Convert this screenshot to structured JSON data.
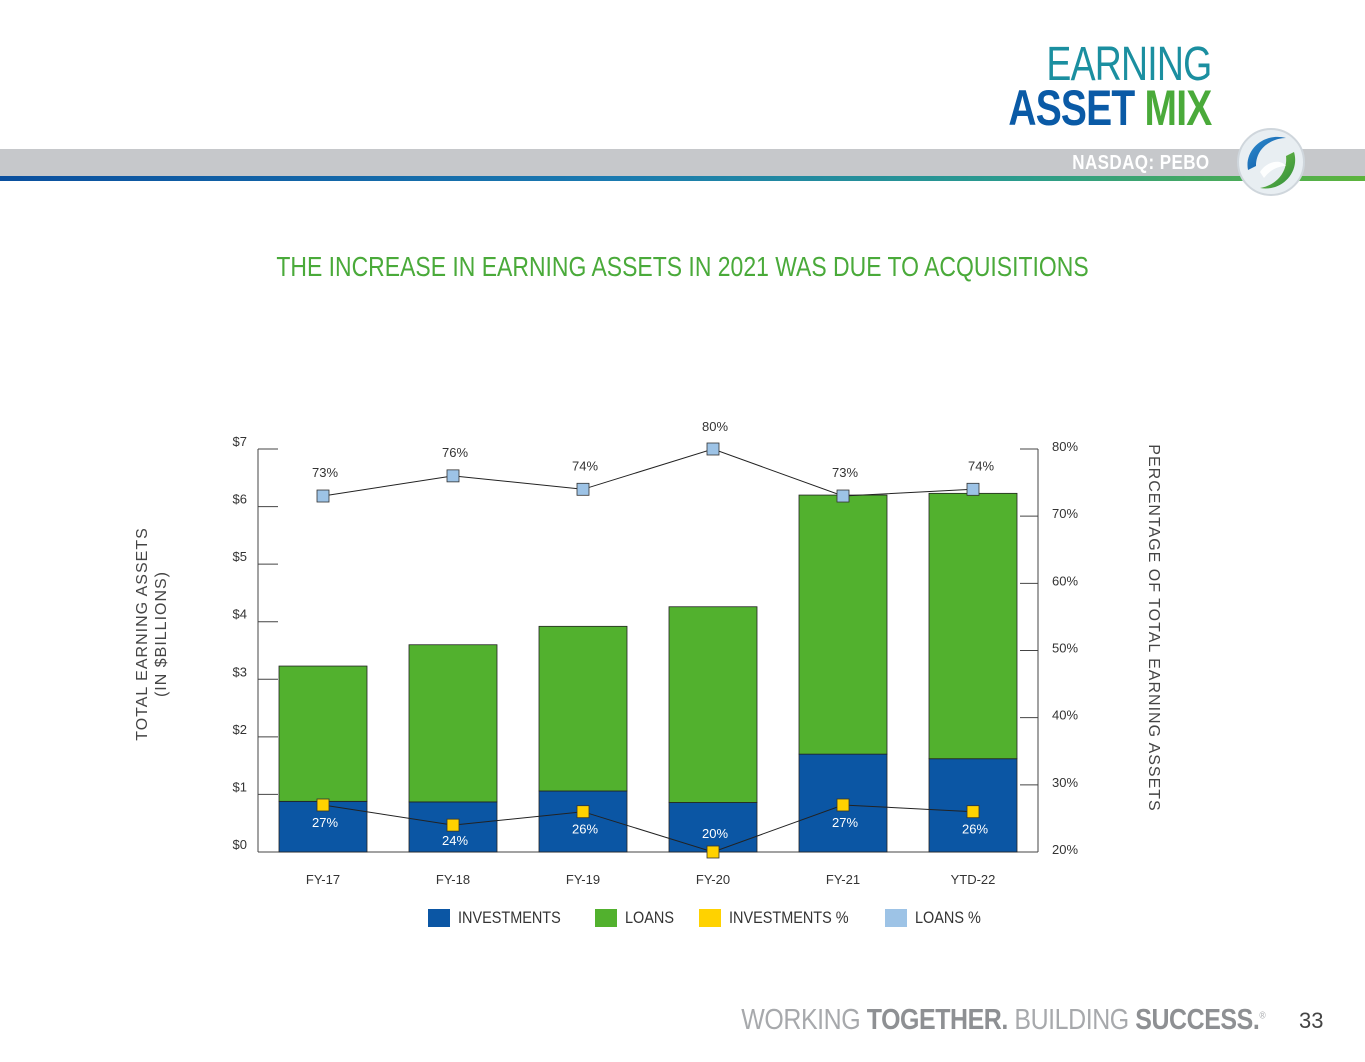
{
  "header": {
    "title_line1": "EARNING",
    "title_asset": "ASSET",
    "title_mix": "MIX",
    "ticker": "NASDAQ: PEBO"
  },
  "subtitle": "THE INCREASE IN EARNING ASSETS IN 2021 WAS DUE TO ACQUISITIONS",
  "chart_data": {
    "type": "bar",
    "stacked": true,
    "categories": [
      "FY-17",
      "FY-18",
      "FY-19",
      "FY-20",
      "FY-21",
      "YTD-22"
    ],
    "series": [
      {
        "name": "INVESTMENTS",
        "color": "#0b56a4",
        "values": [
          0.88,
          0.87,
          1.06,
          0.86,
          1.7,
          1.62
        ]
      },
      {
        "name": "LOANS",
        "color": "#52b12e",
        "values": [
          2.35,
          2.73,
          2.86,
          3.4,
          4.5,
          4.61
        ]
      }
    ],
    "line_series": [
      {
        "name": "INVESTMENTS %",
        "color": "#ffd200",
        "values": [
          27,
          24,
          26,
          20,
          27,
          26
        ],
        "labels": [
          "27%",
          "24%",
          "26%",
          "20%",
          "27%",
          "26%"
        ]
      },
      {
        "name": "LOANS %",
        "color": "#9dc3e6",
        "values": [
          73,
          76,
          74,
          80,
          73,
          74
        ],
        "labels": [
          "73%",
          "76%",
          "74%",
          "80%",
          "73%",
          "74%"
        ]
      }
    ],
    "ylabel": "TOTAL EARNING ASSETS",
    "ylabel_sub": "(IN $BILLIONS)",
    "y2label": "PERCENTAGE OF TOTAL EARNING ASSETS",
    "ylim": [
      0,
      7
    ],
    "y2lim": [
      20,
      80
    ],
    "yticks": [
      "$0",
      "$1",
      "$2",
      "$3",
      "$4",
      "$5",
      "$6",
      "$7"
    ],
    "y2ticks": [
      "20%",
      "30%",
      "40%",
      "50%",
      "60%",
      "70%",
      "80%"
    ],
    "legend": [
      "INVESTMENTS",
      "LOANS",
      "INVESTMENTS %",
      "LOANS %"
    ],
    "legend_position": "bottom"
  },
  "footer": {
    "w1": "WORKING ",
    "w2": "TOGETHER.",
    "w3": " BUILDING ",
    "w4": "SUCCESS.",
    "reg": "®",
    "page": "33"
  }
}
